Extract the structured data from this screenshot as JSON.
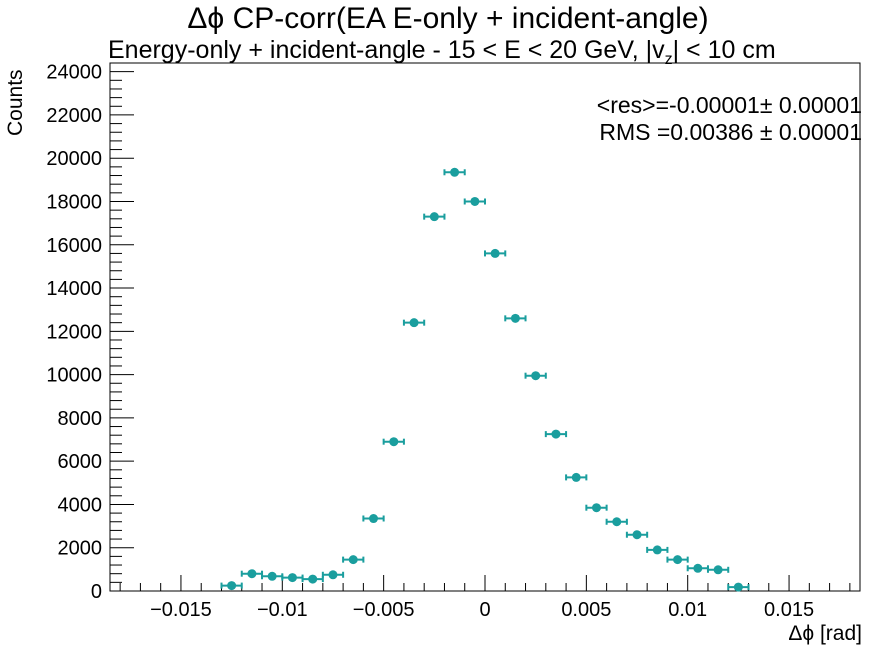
{
  "chart_data": {
    "type": "scatter",
    "title": "Δϕ CP-corr(EA E-only + incident-angle)",
    "subtitle": "Energy-only + incident-angle   -   15 < E < 20 GeV, |v_z| < 10 cm",
    "xlabel": "Δϕ  [rad]",
    "ylabel": "Counts",
    "xlim": [
      -0.0185,
      0.0185
    ],
    "ylim": [
      0,
      24400
    ],
    "x_ticks": [
      -0.015,
      -0.01,
      -0.005,
      0,
      0.005,
      0.01,
      0.015
    ],
    "x_tick_labels": [
      "−0.015",
      "−0.01",
      "−0.005",
      "0",
      "0.005",
      "0.01",
      "0.015"
    ],
    "y_ticks": [
      0,
      2000,
      4000,
      6000,
      8000,
      10000,
      12000,
      14000,
      16000,
      18000,
      20000,
      22000,
      24000
    ],
    "y_tick_labels": [
      "0",
      "2000",
      "4000",
      "6000",
      "8000",
      "10000",
      "12000",
      "14000",
      "16000",
      "18000",
      "20000",
      "22000",
      "24000"
    ],
    "bin_width": 0.001,
    "marker_color": "#1a9e9e",
    "grid": false,
    "series": [
      {
        "x": [
          -0.0125,
          -0.0115,
          -0.0105,
          -0.0095,
          -0.0085,
          -0.0075,
          -0.0065,
          -0.0055,
          -0.0045,
          -0.0035,
          -0.0025,
          -0.0015,
          -0.0005,
          0.0005,
          0.0015,
          0.0025,
          0.0035,
          0.0045,
          0.0055,
          0.0065,
          0.0075,
          0.0085,
          0.0095,
          0.0105,
          0.0115,
          0.0125
        ],
        "values": [
          250,
          800,
          680,
          620,
          550,
          750,
          1450,
          3350,
          6900,
          12400,
          17300,
          19350,
          18000,
          15600,
          12600,
          9950,
          7250,
          5250,
          3850,
          3200,
          2600,
          1900,
          1450,
          1050,
          980,
          180
        ]
      }
    ],
    "stats": {
      "mean_label": "<res>=-0.00001± 0.00001",
      "rms_label": "RMS =0.00386 ± 0.00001"
    }
  }
}
